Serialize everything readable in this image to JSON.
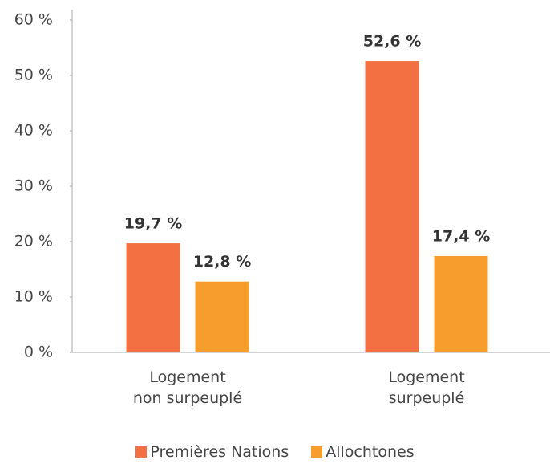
{
  "chart_data": {
    "type": "bar",
    "categories": [
      "Logement\nnon surpeuplé",
      "Logement\nsurpeuplé"
    ],
    "series": [
      {
        "name": "Premières Nations",
        "color": "#f37043",
        "values": [
          19.7,
          52.6
        ],
        "value_labels": [
          "19,7 %",
          "52,6 %"
        ]
      },
      {
        "name": "Allochtones",
        "color": "#f79d2e",
        "values": [
          12.8,
          17.4
        ],
        "value_labels": [
          "12,8 %",
          "17,4 %"
        ]
      }
    ],
    "ylim": [
      0,
      60
    ],
    "yticks": [
      {
        "value": 0,
        "label": "0 %"
      },
      {
        "value": 10,
        "label": "10 %"
      },
      {
        "value": 20,
        "label": "20 %"
      },
      {
        "value": 30,
        "label": "30 %"
      },
      {
        "value": 40,
        "label": "40 %"
      },
      {
        "value": 50,
        "label": "50 %"
      },
      {
        "value": 60,
        "label": "60 %"
      }
    ],
    "grid": false,
    "legend": "bottom"
  }
}
